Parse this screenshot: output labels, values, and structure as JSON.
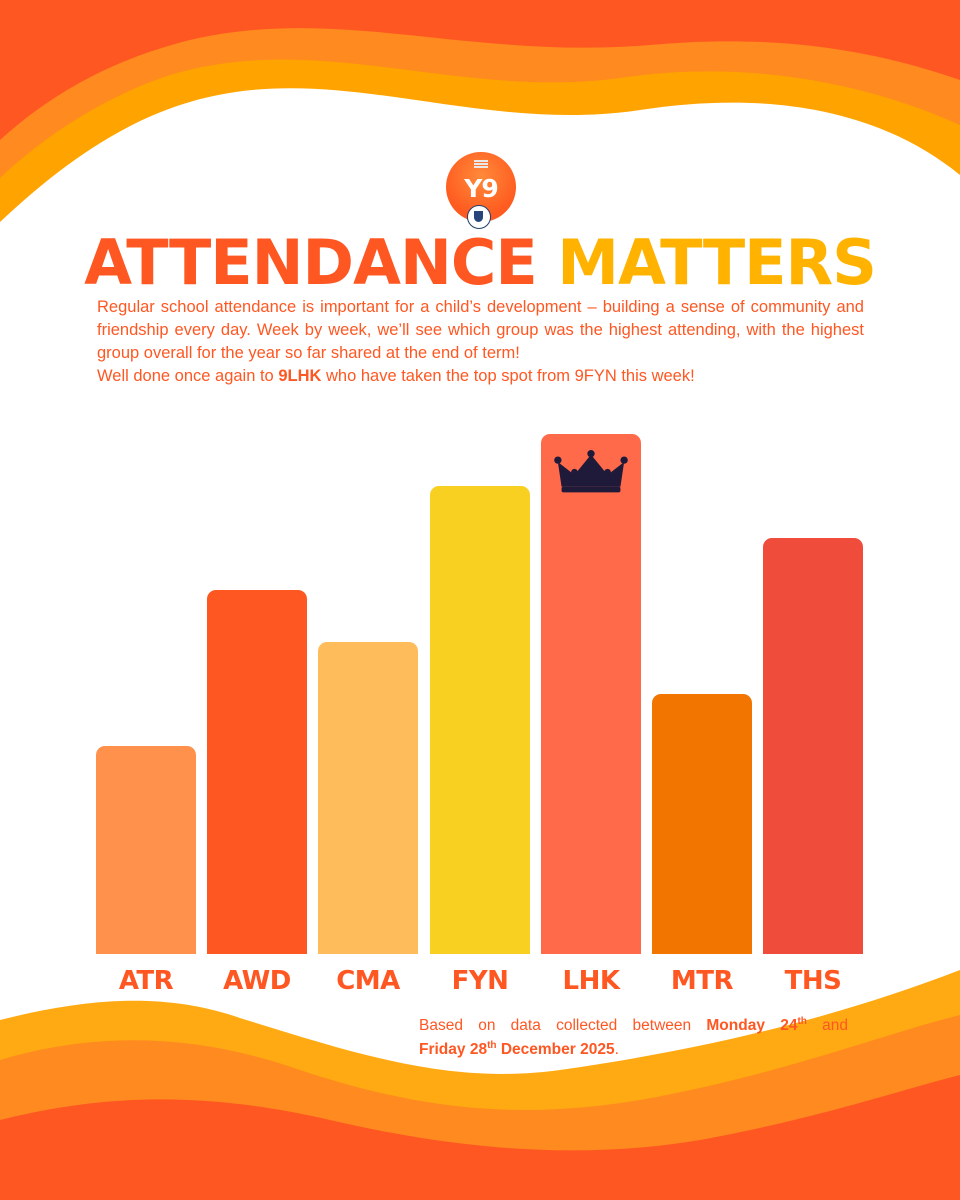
{
  "logo": {
    "badge_text": "Y9"
  },
  "title": {
    "part1": "ATTENDANCE",
    "part2": "MATTERS"
  },
  "intro": {
    "paragraph": "Regular school attendance is important for a child’s development – building a sense of community and friendship every day. Week by week, we’ll see which group was the highest attending, with the highest group overall for the year so far shared at the end of term!",
    "winner_prefix": "Well done once again to ",
    "winner_group": "9LHK",
    "winner_suffix": " who have taken the top spot from 9FYN this week!"
  },
  "chart_data": {
    "type": "bar",
    "title": "",
    "categories": [
      "ATR",
      "AWD",
      "CMA",
      "FYN",
      "LHK",
      "MTR",
      "THS"
    ],
    "values": [
      2,
      3.5,
      3,
      4.5,
      5,
      2.5,
      4
    ],
    "colors": [
      "#ff914d",
      "#ff5722",
      "#ffbc5a",
      "#f7d022",
      "#ff6b4a",
      "#f27500",
      "#ef4c3c"
    ],
    "value_scale": "relative rank (no axis shown)",
    "ylim": [
      0,
      5
    ],
    "top_category": "LHK",
    "top_marker": "crown",
    "xlabel": "",
    "ylabel": "",
    "grid": false,
    "legend": "none"
  },
  "footnote": {
    "line1_prefix": "Based on data collected between ",
    "start_day": "Monday 24",
    "start_suffix": "th",
    "line1_suffix": " and",
    "end_day": "Friday 28",
    "end_suffix": "th",
    "end_rest": " December 2025",
    "period": "."
  },
  "colors": {
    "accent": "#ff5722",
    "highlight": "#ffb300",
    "background": "#ffffff"
  }
}
